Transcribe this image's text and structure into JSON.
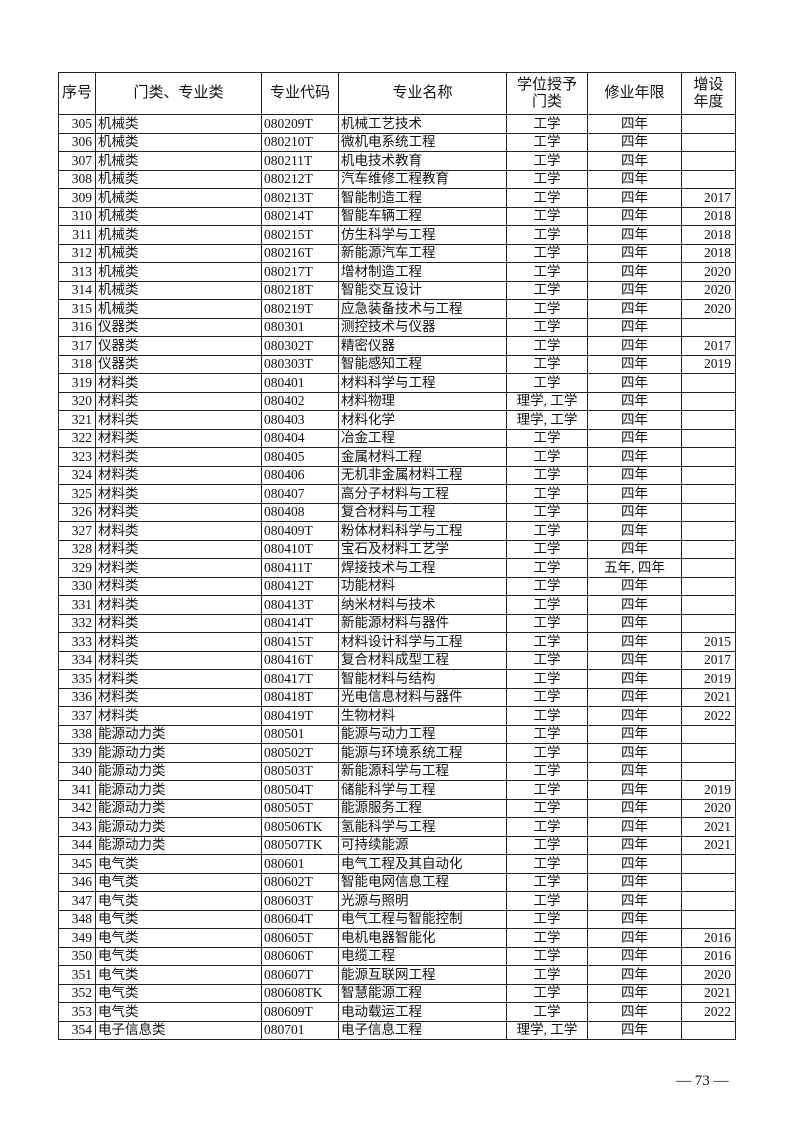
{
  "table": {
    "headers": [
      "序号",
      "门类、专业类",
      "专业代码",
      "专业名称",
      "学位授予门类",
      "修业年限",
      "增设年度"
    ],
    "rows": [
      [
        "305",
        "机械类",
        "080209T",
        "机械工艺技术",
        "工学",
        "四年",
        ""
      ],
      [
        "306",
        "机械类",
        "080210T",
        "微机电系统工程",
        "工学",
        "四年",
        ""
      ],
      [
        "307",
        "机械类",
        "080211T",
        "机电技术教育",
        "工学",
        "四年",
        ""
      ],
      [
        "308",
        "机械类",
        "080212T",
        "汽车维修工程教育",
        "工学",
        "四年",
        ""
      ],
      [
        "309",
        "机械类",
        "080213T",
        "智能制造工程",
        "工学",
        "四年",
        "2017"
      ],
      [
        "310",
        "机械类",
        "080214T",
        "智能车辆工程",
        "工学",
        "四年",
        "2018"
      ],
      [
        "311",
        "机械类",
        "080215T",
        "仿生科学与工程",
        "工学",
        "四年",
        "2018"
      ],
      [
        "312",
        "机械类",
        "080216T",
        "新能源汽车工程",
        "工学",
        "四年",
        "2018"
      ],
      [
        "313",
        "机械类",
        "080217T",
        "增材制造工程",
        "工学",
        "四年",
        "2020"
      ],
      [
        "314",
        "机械类",
        "080218T",
        "智能交互设计",
        "工学",
        "四年",
        "2020"
      ],
      [
        "315",
        "机械类",
        "080219T",
        "应急装备技术与工程",
        "工学",
        "四年",
        "2020"
      ],
      [
        "316",
        "仪器类",
        "080301",
        "测控技术与仪器",
        "工学",
        "四年",
        ""
      ],
      [
        "317",
        "仪器类",
        "080302T",
        "精密仪器",
        "工学",
        "四年",
        "2017"
      ],
      [
        "318",
        "仪器类",
        "080303T",
        "智能感知工程",
        "工学",
        "四年",
        "2019"
      ],
      [
        "319",
        "材料类",
        "080401",
        "材料科学与工程",
        "工学",
        "四年",
        ""
      ],
      [
        "320",
        "材料类",
        "080402",
        "材料物理",
        "理学, 工学",
        "四年",
        ""
      ],
      [
        "321",
        "材料类",
        "080403",
        "材料化学",
        "理学, 工学",
        "四年",
        ""
      ],
      [
        "322",
        "材料类",
        "080404",
        "冶金工程",
        "工学",
        "四年",
        ""
      ],
      [
        "323",
        "材料类",
        "080405",
        "金属材料工程",
        "工学",
        "四年",
        ""
      ],
      [
        "324",
        "材料类",
        "080406",
        "无机非金属材料工程",
        "工学",
        "四年",
        ""
      ],
      [
        "325",
        "材料类",
        "080407",
        "高分子材料与工程",
        "工学",
        "四年",
        ""
      ],
      [
        "326",
        "材料类",
        "080408",
        "复合材料与工程",
        "工学",
        "四年",
        ""
      ],
      [
        "327",
        "材料类",
        "080409T",
        "粉体材料科学与工程",
        "工学",
        "四年",
        ""
      ],
      [
        "328",
        "材料类",
        "080410T",
        "宝石及材料工艺学",
        "工学",
        "四年",
        ""
      ],
      [
        "329",
        "材料类",
        "080411T",
        "焊接技术与工程",
        "工学",
        "五年, 四年",
        ""
      ],
      [
        "330",
        "材料类",
        "080412T",
        "功能材料",
        "工学",
        "四年",
        ""
      ],
      [
        "331",
        "材料类",
        "080413T",
        "纳米材料与技术",
        "工学",
        "四年",
        ""
      ],
      [
        "332",
        "材料类",
        "080414T",
        "新能源材料与器件",
        "工学",
        "四年",
        ""
      ],
      [
        "333",
        "材料类",
        "080415T",
        "材料设计科学与工程",
        "工学",
        "四年",
        "2015"
      ],
      [
        "334",
        "材料类",
        "080416T",
        "复合材料成型工程",
        "工学",
        "四年",
        "2017"
      ],
      [
        "335",
        "材料类",
        "080417T",
        "智能材料与结构",
        "工学",
        "四年",
        "2019"
      ],
      [
        "336",
        "材料类",
        "080418T",
        "光电信息材料与器件",
        "工学",
        "四年",
        "2021"
      ],
      [
        "337",
        "材料类",
        "080419T",
        "生物材料",
        "工学",
        "四年",
        "2022"
      ],
      [
        "338",
        "能源动力类",
        "080501",
        "能源与动力工程",
        "工学",
        "四年",
        ""
      ],
      [
        "339",
        "能源动力类",
        "080502T",
        "能源与环境系统工程",
        "工学",
        "四年",
        ""
      ],
      [
        "340",
        "能源动力类",
        "080503T",
        "新能源科学与工程",
        "工学",
        "四年",
        ""
      ],
      [
        "341",
        "能源动力类",
        "080504T",
        "储能科学与工程",
        "工学",
        "四年",
        "2019"
      ],
      [
        "342",
        "能源动力类",
        "080505T",
        "能源服务工程",
        "工学",
        "四年",
        "2020"
      ],
      [
        "343",
        "能源动力类",
        "080506TK",
        "氢能科学与工程",
        "工学",
        "四年",
        "2021"
      ],
      [
        "344",
        "能源动力类",
        "080507TK",
        "可持续能源",
        "工学",
        "四年",
        "2021"
      ],
      [
        "345",
        "电气类",
        "080601",
        "电气工程及其自动化",
        "工学",
        "四年",
        ""
      ],
      [
        "346",
        "电气类",
        "080602T",
        "智能电网信息工程",
        "工学",
        "四年",
        ""
      ],
      [
        "347",
        "电气类",
        "080603T",
        "光源与照明",
        "工学",
        "四年",
        ""
      ],
      [
        "348",
        "电气类",
        "080604T",
        "电气工程与智能控制",
        "工学",
        "四年",
        ""
      ],
      [
        "349",
        "电气类",
        "080605T",
        "电机电器智能化",
        "工学",
        "四年",
        "2016"
      ],
      [
        "350",
        "电气类",
        "080606T",
        "电缆工程",
        "工学",
        "四年",
        "2016"
      ],
      [
        "351",
        "电气类",
        "080607T",
        "能源互联网工程",
        "工学",
        "四年",
        "2020"
      ],
      [
        "352",
        "电气类",
        "080608TK",
        "智慧能源工程",
        "工学",
        "四年",
        "2021"
      ],
      [
        "353",
        "电气类",
        "080609T",
        "电动载运工程",
        "工学",
        "四年",
        "2022"
      ],
      [
        "354",
        "电子信息类",
        "080701",
        "电子信息工程",
        "理学, 工学",
        "四年",
        ""
      ]
    ]
  },
  "footer": {
    "page_number": "— 73 —"
  }
}
